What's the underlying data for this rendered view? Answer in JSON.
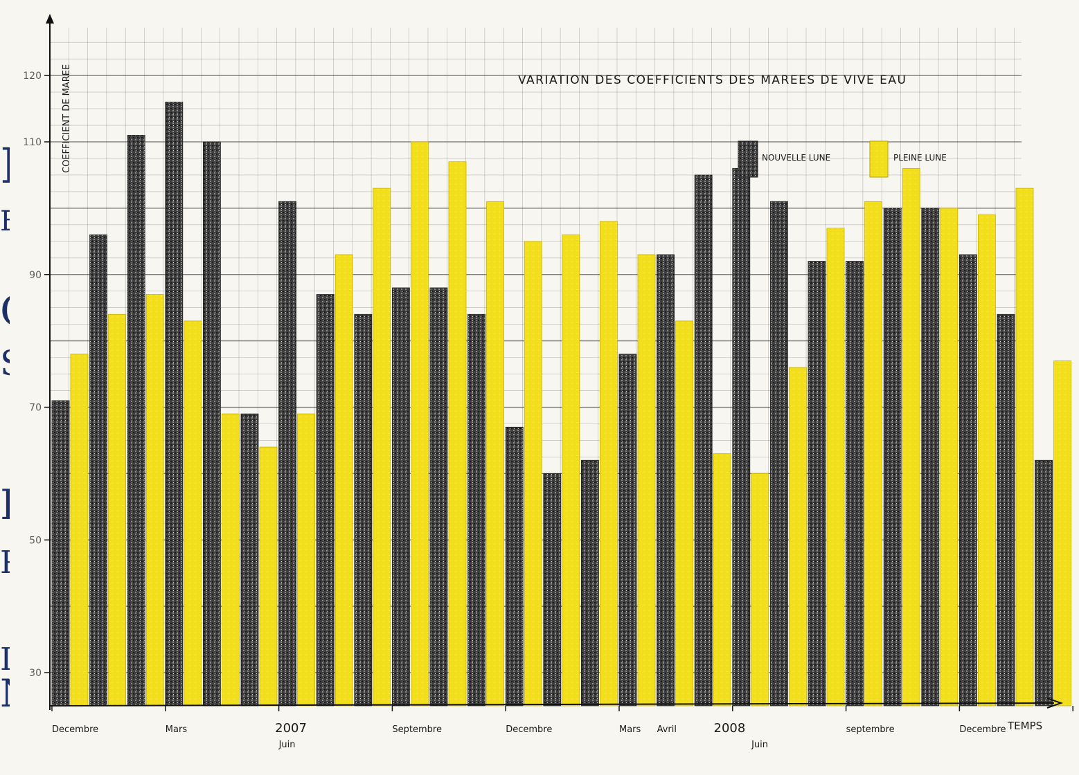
{
  "chart_data": {
    "type": "bar",
    "title": "VARIATION DES COEFFICIENTS DES MAREES DE VIVE EAU",
    "ylabel": "COEFFICIENT DE MAREE",
    "xlabel": "TEMPS",
    "ylim": [
      25,
      127
    ],
    "yticks": [
      30,
      50,
      70,
      90,
      110,
      120
    ],
    "grid": true,
    "legend_position": "top-right",
    "series": [
      {
        "name": "NOUVELLE LUNE",
        "color": "#3f3f3f",
        "values": [
          71,
          96,
          111,
          116,
          110,
          69,
          101,
          87,
          84,
          88,
          88,
          84,
          67,
          60,
          62,
          78,
          93,
          105,
          106,
          101,
          92,
          92,
          100,
          100,
          93,
          84,
          62
        ]
      },
      {
        "name": "PLEINE LUNE",
        "color": "#f2de1a",
        "values": [
          78,
          84,
          87,
          83,
          69,
          64,
          69,
          93,
          103,
          110,
          107,
          101,
          95,
          96,
          98,
          93,
          83,
          63,
          60,
          76,
          97,
          101,
          106,
          100,
          99,
          103,
          77
        ]
      }
    ],
    "x_labels": [
      {
        "text": "Decembre",
        "slot": 0
      },
      {
        "text": "Mars",
        "slot": 3
      },
      {
        "text": "2007",
        "slot": 5.9
      },
      {
        "text": "Juin",
        "slot": 6
      },
      {
        "text": "Septembre",
        "slot": 9
      },
      {
        "text": "Decembre",
        "slot": 12
      },
      {
        "text": "Mars",
        "slot": 15
      },
      {
        "text": "Avril",
        "slot": 16
      },
      {
        "text": "2008",
        "slot": 17.5
      },
      {
        "text": "Juin",
        "slot": 18.5
      },
      {
        "text": "septembre",
        "slot": 21
      },
      {
        "text": "Decembre",
        "slot": 24
      }
    ],
    "edge_fragments": [
      "I",
      "E",
      "C",
      "S",
      "I",
      "P",
      "I",
      "N"
    ]
  }
}
